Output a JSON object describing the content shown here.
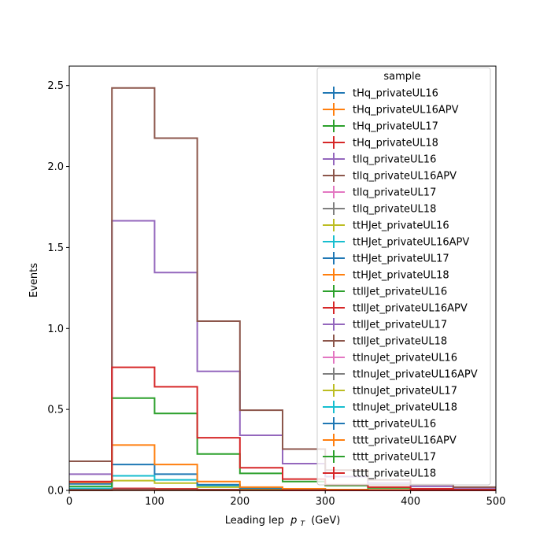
{
  "chart_data": {
    "type": "histogram-step",
    "xlabel": "Leading lep",
    "xlabel_symbol": "p",
    "xlabel_sub": "T",
    "xlabel_unit": "(GeV)",
    "ylabel": "Events",
    "xlim": [
      0,
      500
    ],
    "ylim": [
      0,
      2.62
    ],
    "xticks": [
      0,
      100,
      200,
      300,
      400,
      500
    ],
    "yticks": [
      0.0,
      0.5,
      1.0,
      1.5,
      2.0,
      2.5
    ],
    "ytick_labels": [
      "0.0",
      "0.5",
      "1.0",
      "1.5",
      "2.0",
      "2.5"
    ],
    "bin_edges": [
      0,
      50,
      100,
      150,
      200,
      250,
      300,
      350,
      400,
      450,
      500
    ],
    "legend_title": "sample",
    "legend_position": "upper right",
    "series": [
      {
        "name": "tHq_privateUL16",
        "color": "#1f77b4",
        "values": [
          0.005,
          0.008,
          0.006,
          0.003,
          0.002,
          0.001,
          0.001,
          0.0,
          0.0,
          0.0
        ]
      },
      {
        "name": "tHq_privateUL16APV",
        "color": "#ff7f0e",
        "values": [
          0.005,
          0.008,
          0.006,
          0.003,
          0.002,
          0.001,
          0.001,
          0.0,
          0.0,
          0.0
        ]
      },
      {
        "name": "tHq_privateUL17",
        "color": "#2ca02c",
        "values": [
          0.006,
          0.01,
          0.008,
          0.004,
          0.002,
          0.001,
          0.001,
          0.0,
          0.0,
          0.0
        ]
      },
      {
        "name": "tHq_privateUL18",
        "color": "#d62728",
        "values": [
          0.008,
          0.012,
          0.009,
          0.005,
          0.003,
          0.002,
          0.001,
          0.0,
          0.0,
          0.0
        ]
      },
      {
        "name": "tllq_privateUL16",
        "color": "#9467bd",
        "values": [
          0.1,
          1.665,
          1.345,
          0.735,
          0.34,
          0.165,
          0.085,
          0.045,
          0.025,
          0.015
        ]
      },
      {
        "name": "tllq_privateUL16APV",
        "color": "#8c564b",
        "values": [
          0.18,
          2.485,
          2.175,
          1.045,
          0.495,
          0.255,
          0.125,
          0.065,
          0.035,
          0.02
        ]
      },
      {
        "name": "tllq_privateUL17",
        "color": "#e377c2",
        "values": [
          0.002,
          0.004,
          0.003,
          0.002,
          0.001,
          0.001,
          0.0,
          0.0,
          0.0,
          0.0
        ]
      },
      {
        "name": "tllq_privateUL18",
        "color": "#7f7f7f",
        "values": [
          0.002,
          0.004,
          0.003,
          0.002,
          0.001,
          0.001,
          0.0,
          0.0,
          0.0,
          0.0
        ]
      },
      {
        "name": "ttHJet_privateUL16",
        "color": "#bcbd22",
        "values": [
          0.01,
          0.06,
          0.045,
          0.02,
          0.01,
          0.005,
          0.003,
          0.002,
          0.001,
          0.001
        ]
      },
      {
        "name": "ttHJet_privateUL16APV",
        "color": "#17becf",
        "values": [
          0.012,
          0.09,
          0.065,
          0.03,
          0.015,
          0.008,
          0.004,
          0.002,
          0.001,
          0.001
        ]
      },
      {
        "name": "ttHJet_privateUL17",
        "color": "#1f77b4",
        "values": [
          0.04,
          0.16,
          0.1,
          0.035,
          0.015,
          0.008,
          0.004,
          0.002,
          0.001,
          0.001
        ]
      },
      {
        "name": "ttHJet_privateUL18",
        "color": "#ff7f0e",
        "values": [
          0.05,
          0.28,
          0.16,
          0.055,
          0.02,
          0.01,
          0.005,
          0.003,
          0.002,
          0.001
        ]
      },
      {
        "name": "ttllJet_privateUL16",
        "color": "#2ca02c",
        "values": [
          0.025,
          0.57,
          0.475,
          0.225,
          0.105,
          0.055,
          0.03,
          0.015,
          0.01,
          0.005
        ]
      },
      {
        "name": "ttllJet_privateUL16APV",
        "color": "#d62728",
        "values": [
          0.055,
          0.76,
          0.64,
          0.325,
          0.14,
          0.07,
          0.035,
          0.02,
          0.01,
          0.005
        ]
      },
      {
        "name": "ttllJet_privateUL17",
        "color": "#9467bd",
        "values": [
          0.003,
          0.006,
          0.005,
          0.003,
          0.002,
          0.001,
          0.0,
          0.0,
          0.0,
          0.0
        ]
      },
      {
        "name": "ttllJet_privateUL18",
        "color": "#8c564b",
        "values": [
          0.003,
          0.006,
          0.005,
          0.003,
          0.002,
          0.001,
          0.0,
          0.0,
          0.0,
          0.0
        ]
      },
      {
        "name": "ttlnuJet_privateUL16",
        "color": "#e377c2",
        "values": [
          0.002,
          0.003,
          0.002,
          0.001,
          0.001,
          0.0,
          0.0,
          0.0,
          0.0,
          0.0
        ]
      },
      {
        "name": "ttlnuJet_privateUL16APV",
        "color": "#7f7f7f",
        "values": [
          0.002,
          0.003,
          0.002,
          0.001,
          0.001,
          0.0,
          0.0,
          0.0,
          0.0,
          0.0
        ]
      },
      {
        "name": "ttlnuJet_privateUL17",
        "color": "#bcbd22",
        "values": [
          0.002,
          0.003,
          0.002,
          0.001,
          0.001,
          0.0,
          0.0,
          0.0,
          0.0,
          0.0
        ]
      },
      {
        "name": "ttlnuJet_privateUL18",
        "color": "#17becf",
        "values": [
          0.002,
          0.003,
          0.002,
          0.001,
          0.001,
          0.0,
          0.0,
          0.0,
          0.0,
          0.0
        ]
      },
      {
        "name": "tttt_privateUL16",
        "color": "#1f77b4",
        "values": [
          0.001,
          0.002,
          0.002,
          0.001,
          0.001,
          0.0,
          0.0,
          0.0,
          0.0,
          0.0
        ]
      },
      {
        "name": "tttt_privateUL16APV",
        "color": "#ff7f0e",
        "values": [
          0.001,
          0.002,
          0.002,
          0.001,
          0.001,
          0.0,
          0.0,
          0.0,
          0.0,
          0.0
        ]
      },
      {
        "name": "tttt_privateUL17",
        "color": "#2ca02c",
        "values": [
          0.001,
          0.002,
          0.002,
          0.001,
          0.001,
          0.0,
          0.0,
          0.0,
          0.0,
          0.0
        ]
      },
      {
        "name": "tttt_privateUL18",
        "color": "#d62728",
        "values": [
          0.001,
          0.002,
          0.002,
          0.001,
          0.001,
          0.0,
          0.0,
          0.0,
          0.0,
          0.0
        ]
      }
    ]
  }
}
